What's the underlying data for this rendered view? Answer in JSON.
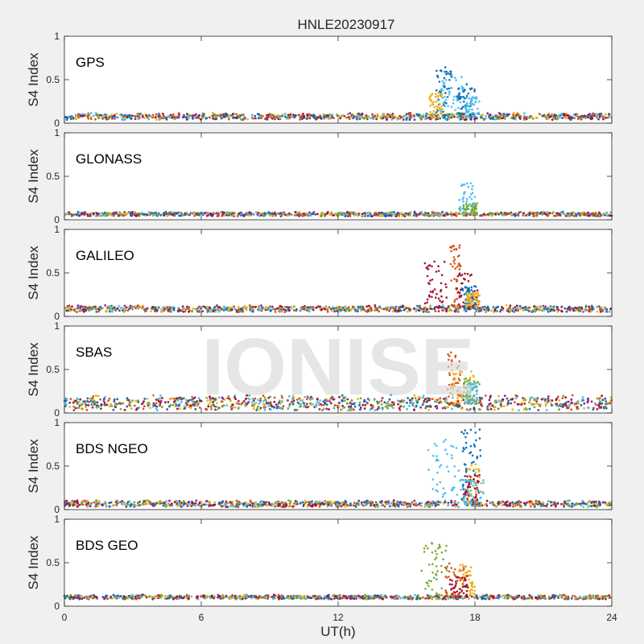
{
  "chart_data": {
    "type": "scatter",
    "title": "HNLE20230917",
    "xlabel": "UT(h)",
    "ylabel": "S4 Index",
    "xlim": [
      0,
      24
    ],
    "ylim": [
      0,
      1
    ],
    "xticks": [
      0,
      6,
      12,
      18,
      24
    ],
    "yticks": [
      0,
      0.5,
      1
    ],
    "watermark": "IONISE",
    "series_colors": [
      "#0072BD",
      "#D95319",
      "#EDB120",
      "#7E2F8E",
      "#77AC30",
      "#4DBEEE",
      "#A2142F"
    ],
    "panels": [
      {
        "label": "GPS",
        "baseline": 0.07,
        "noise": 0.03,
        "events": [
          {
            "x": [
              16.3,
              17.0
            ],
            "ymax": 0.68,
            "color": "#0072BD"
          },
          {
            "x": [
              16.5,
              17.6
            ],
            "ymax": 0.55,
            "color": "#4DBEEE"
          },
          {
            "x": [
              17.2,
              18.0
            ],
            "ymax": 0.45,
            "color": "#0072BD"
          },
          {
            "x": [
              17.6,
              18.2
            ],
            "ymax": 0.3,
            "color": "#4DBEEE"
          },
          {
            "x": [
              16.0,
              16.6
            ],
            "ymax": 0.35,
            "color": "#EDB120"
          }
        ]
      },
      {
        "label": "GLONASS",
        "baseline": 0.06,
        "noise": 0.02,
        "events": [
          {
            "x": [
              17.3,
              18.0
            ],
            "ymax": 0.42,
            "color": "#4DBEEE"
          },
          {
            "x": [
              17.5,
              18.1
            ],
            "ymax": 0.2,
            "color": "#77AC30"
          }
        ]
      },
      {
        "label": "GALILEO",
        "baseline": 0.08,
        "noise": 0.03,
        "events": [
          {
            "x": [
              15.8,
              16.8
            ],
            "ymax": 0.65,
            "color": "#A2142F"
          },
          {
            "x": [
              16.9,
              17.4
            ],
            "ymax": 0.82,
            "color": "#D95319"
          },
          {
            "x": [
              17.2,
              18.2
            ],
            "ymax": 0.5,
            "color": "#A2142F"
          },
          {
            "x": [
              17.4,
              18.1
            ],
            "ymax": 0.35,
            "color": "#0072BD"
          },
          {
            "x": [
              17.6,
              18.2
            ],
            "ymax": 0.3,
            "color": "#EDB120"
          }
        ]
      },
      {
        "label": "SBAS",
        "baseline": 0.1,
        "noise": 0.07,
        "events": [
          {
            "x": [
              16.8,
              17.4
            ],
            "ymax": 0.7,
            "color": "#D95319"
          },
          {
            "x": [
              17.0,
              18.0
            ],
            "ymax": 0.5,
            "color": "#EDB120"
          },
          {
            "x": [
              17.5,
              18.2
            ],
            "ymax": 0.42,
            "color": "#77AC30"
          },
          {
            "x": [
              17.6,
              18.1
            ],
            "ymax": 0.35,
            "color": "#4DBEEE"
          }
        ]
      },
      {
        "label": "BDS NGEO",
        "baseline": 0.06,
        "noise": 0.03,
        "events": [
          {
            "x": [
              15.9,
              17.3
            ],
            "ymax": 0.82,
            "color": "#4DBEEE"
          },
          {
            "x": [
              17.4,
              18.3
            ],
            "ymax": 0.95,
            "color": "#0072BD"
          },
          {
            "x": [
              17.6,
              18.3
            ],
            "ymax": 0.55,
            "color": "#EDB120"
          },
          {
            "x": [
              17.5,
              18.2
            ],
            "ymax": 0.4,
            "color": "#A2142F"
          },
          {
            "x": [
              17.3,
              18.4
            ],
            "ymax": 0.35,
            "color": "#4DBEEE"
          }
        ]
      },
      {
        "label": "BDS GEO",
        "baseline": 0.1,
        "noise": 0.02,
        "events": [
          {
            "x": [
              15.6,
              16.8
            ],
            "ymax": 0.75,
            "color": "#77AC30"
          },
          {
            "x": [
              16.7,
              17.6
            ],
            "ymax": 0.5,
            "color": "#D95319"
          },
          {
            "x": [
              17.3,
              18.0
            ],
            "ymax": 0.48,
            "color": "#EDB120"
          },
          {
            "x": [
              16.9,
              17.7
            ],
            "ymax": 0.35,
            "color": "#A2142F"
          }
        ]
      }
    ]
  }
}
